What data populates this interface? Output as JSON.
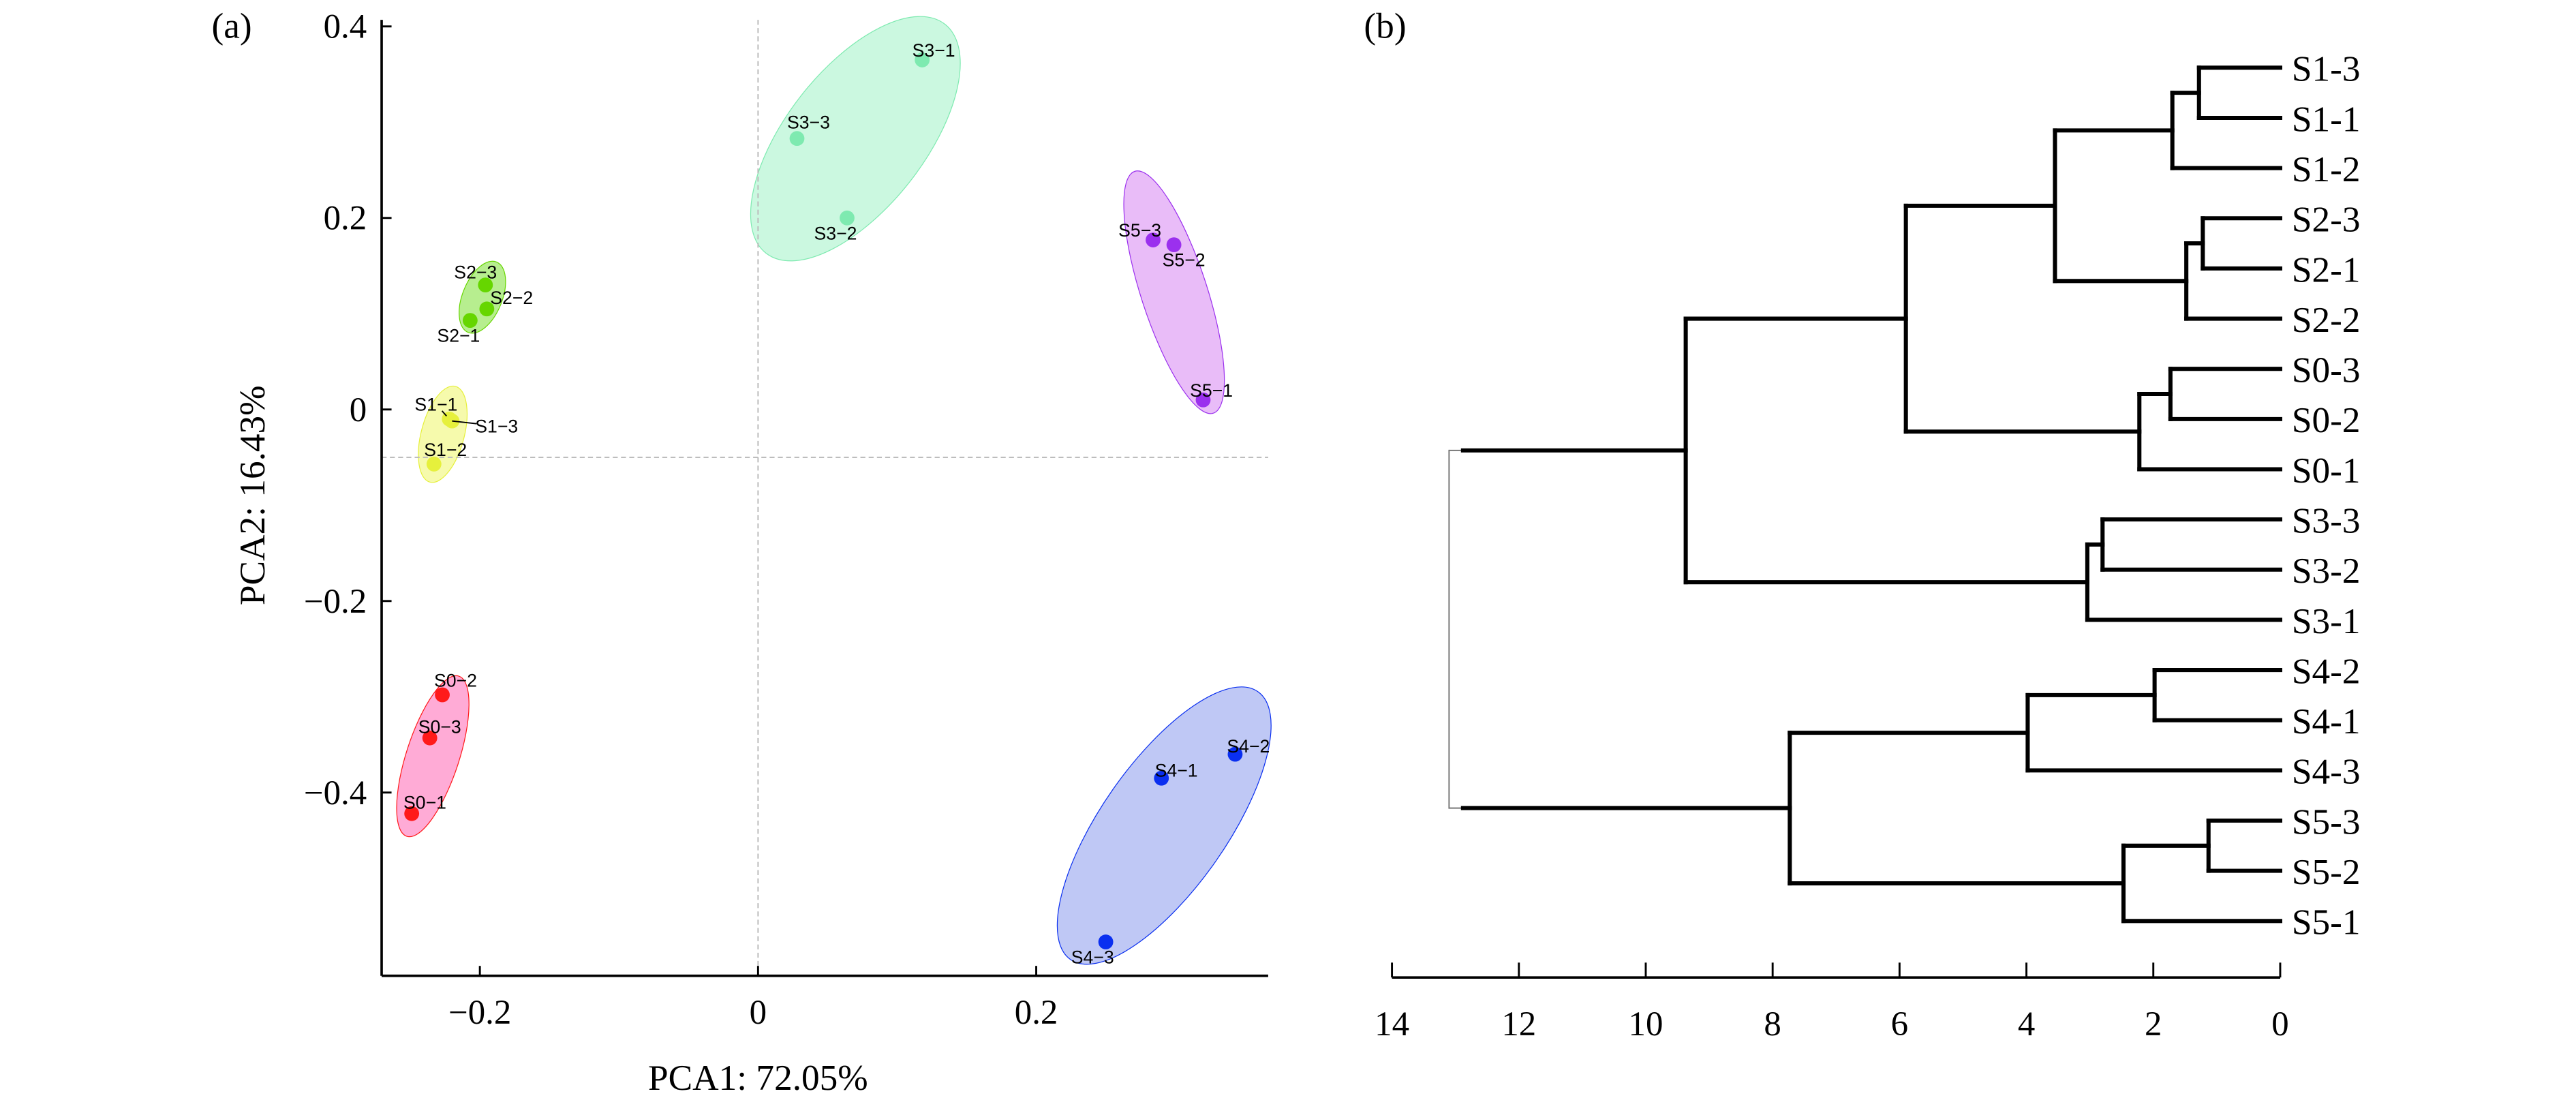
{
  "chart_data": [
    {
      "type": "scatter",
      "panel_label": "(a)",
      "xlabel": "PCA1: 72.05%",
      "ylabel": "PCA2: 16.43%",
      "xlim": [
        -0.27,
        0.367
      ],
      "ylim": [
        -0.59,
        0.41
      ],
      "xticks": [
        {
          "v": -0.2,
          "label": "−0.2"
        },
        {
          "v": 0,
          "label": "0"
        },
        {
          "v": 0.2,
          "label": "0.2"
        }
      ],
      "yticks": [
        {
          "v": 0.4,
          "label": "0.4"
        },
        {
          "v": 0.2,
          "label": "0.2"
        },
        {
          "v": 0,
          "label": "0"
        },
        {
          "v": -0.2,
          "label": "−0.2"
        },
        {
          "v": -0.4,
          "label": "−0.4"
        }
      ],
      "reference_lines": {
        "x": 0,
        "y": -0.05
      },
      "groups": [
        {
          "name": "S0",
          "color": "#ff1a1a",
          "fill": "#ff8fc8",
          "points": [
            {
              "label": "S0-2",
              "x": -0.227,
              "y": -0.298
            },
            {
              "label": "S0-3",
              "x": -0.236,
              "y": -0.343
            },
            {
              "label": "S0-1",
              "x": -0.249,
              "y": -0.422
            }
          ]
        },
        {
          "name": "S1",
          "color": "#e6f03c",
          "fill": "#f3f890",
          "points": [
            {
              "label": "S1-1",
              "x": -0.222,
              "y": -0.01
            },
            {
              "label": "S1-3",
              "x": -0.22,
              "y": -0.012
            },
            {
              "label": "S1-2",
              "x": -0.233,
              "y": -0.057
            }
          ]
        },
        {
          "name": "S2",
          "color": "#66d600",
          "fill": "#9fe86a",
          "points": [
            {
              "label": "S2-3",
              "x": -0.196,
              "y": 0.13
            },
            {
              "label": "S2-2",
              "x": -0.195,
              "y": 0.105
            },
            {
              "label": "S2-1",
              "x": -0.207,
              "y": 0.093
            }
          ]
        },
        {
          "name": "S3",
          "color": "#7eeab0",
          "fill": "#b9f6d6",
          "points": [
            {
              "label": "S3-1",
              "x": 0.118,
              "y": 0.365
            },
            {
              "label": "S3-3",
              "x": 0.028,
              "y": 0.283
            },
            {
              "label": "S3-2",
              "x": 0.064,
              "y": 0.2
            }
          ]
        },
        {
          "name": "S4",
          "color": "#0a2ff0",
          "fill": "#aab5f2",
          "points": [
            {
              "label": "S4-2",
              "x": 0.343,
              "y": -0.36
            },
            {
              "label": "S4-1",
              "x": 0.29,
              "y": -0.385
            },
            {
              "label": "S4-3",
              "x": 0.25,
              "y": -0.556
            }
          ]
        },
        {
          "name": "S5",
          "color": "#9b30ee",
          "fill": "#e2a5f6",
          "points": [
            {
              "label": "S5-3",
              "x": 0.284,
              "y": 0.177
            },
            {
              "label": "S5-2",
              "x": 0.299,
              "y": 0.172
            },
            {
              "label": "S5-1",
              "x": 0.32,
              "y": 0.01
            }
          ]
        }
      ]
    },
    {
      "type": "dendrogram",
      "panel_label": "(b)",
      "xlim": [
        14,
        0
      ],
      "xticks": [
        "14",
        "12",
        "10",
        "8",
        "6",
        "4",
        "2",
        "0"
      ],
      "leaves": [
        "S1-3",
        "S1-1",
        "S1-2",
        "S2-3",
        "S2-1",
        "S2-2",
        "S0-3",
        "S0-2",
        "S0-1",
        "S3-3",
        "S3-2",
        "S3-1",
        "S4-2",
        "S4-1",
        "S4-3",
        "S5-3",
        "S5-2",
        "S5-1"
      ],
      "tree": {
        "h": 13.1,
        "children": [
          {
            "h": 9.37,
            "children": [
              {
                "h": 5.9,
                "children": [
                  {
                    "h": 3.55,
                    "children": [
                      {
                        "h": 1.7,
                        "children": [
                          {
                            "h": 1.28,
                            "children": [
                              "S1-3",
                              "S1-1"
                            ]
                          },
                          "S1-2"
                        ]
                      },
                      {
                        "h": 1.48,
                        "children": [
                          {
                            "h": 1.22,
                            "children": [
                              "S2-3",
                              "S2-1"
                            ]
                          },
                          "S2-2"
                        ]
                      }
                    ]
                  },
                  {
                    "h": 2.22,
                    "children": [
                      {
                        "h": 1.73,
                        "children": [
                          "S0-3",
                          "S0-2"
                        ]
                      },
                      "S0-1"
                    ]
                  }
                ]
              },
              {
                "h": 3.04,
                "children": [
                  {
                    "h": 2.8,
                    "children": [
                      "S3-3",
                      "S3-2"
                    ]
                  },
                  "S3-1"
                ]
              }
            ]
          },
          {
            "h": 7.73,
            "children": [
              {
                "h": 3.98,
                "children": [
                  {
                    "h": 1.98,
                    "children": [
                      "S4-2",
                      "S4-1"
                    ]
                  },
                  "S4-3"
                ]
              },
              {
                "h": 2.47,
                "children": [
                  {
                    "h": 1.13,
                    "children": [
                      "S5-3",
                      "S5-2"
                    ]
                  },
                  "S5-1"
                ]
              }
            ]
          }
        ]
      }
    }
  ]
}
